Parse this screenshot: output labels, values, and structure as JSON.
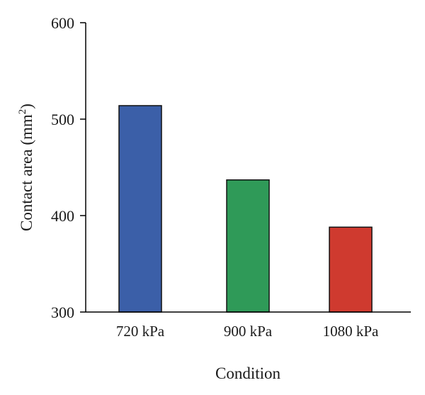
{
  "chart_data": {
    "type": "bar",
    "title": "",
    "xlabel": "Condition",
    "ylabel_main": "Contact area (mm",
    "ylabel_sup": "2",
    "ylabel_close": ")",
    "categories": [
      "720 kPa",
      "900 kPa",
      "1080 kPa"
    ],
    "values": [
      514,
      437,
      388
    ],
    "colors": [
      "#3b5fa8",
      "#2f9a58",
      "#cf3a2f"
    ],
    "ylim": [
      300,
      600
    ],
    "yticks": [
      300,
      400,
      500,
      600
    ],
    "grid": false,
    "legend": "none"
  }
}
